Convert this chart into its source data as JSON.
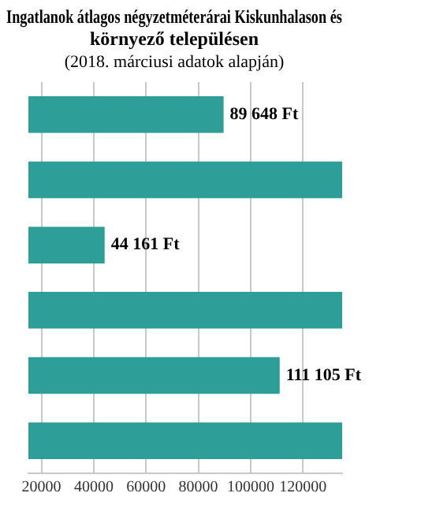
{
  "chart_data": {
    "type": "bar",
    "orientation": "horizontal",
    "title": [
      "Ingatlanok átlagos négyzetméterárai Kiskunhalason és",
      "környező településen"
    ],
    "subtitle": "(2018. márciusi adatok alapján)",
    "categories": [
      null,
      null,
      null,
      null,
      null,
      null
    ],
    "series": [
      {
        "color": "#2e9e98",
        "values": [
          89648,
          135000,
          44161,
          135000,
          111105,
          135000
        ],
        "value_labels": [
          "89 648 Ft",
          null,
          "44 161 Ft",
          null,
          "111 105 Ft",
          null
        ]
      }
    ],
    "xlim": [
      15000,
      135000
    ],
    "xticks": [
      20000,
      40000,
      60000,
      80000,
      100000,
      120000
    ],
    "grid": "x",
    "legend": false
  }
}
